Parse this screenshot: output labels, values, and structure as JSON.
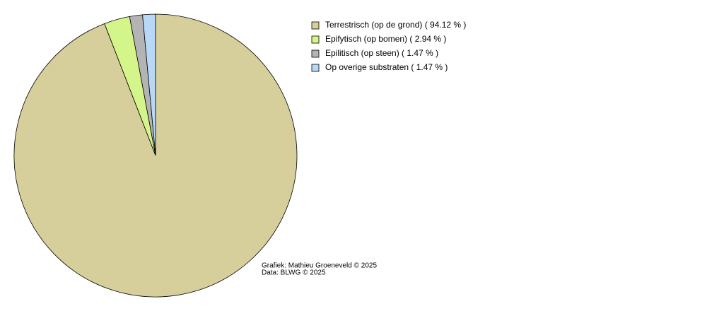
{
  "chart_data": {
    "type": "pie",
    "categories": [
      "Terrestrisch (op de grond) ( 94.12 % )",
      "Epifytisch (op bomen) ( 2.94 % )",
      "Epilitisch (op steen) ( 1.47 % )",
      "Op overige substraten ( 1.47 % )"
    ],
    "values": [
      94.12,
      2.94,
      1.47,
      1.47
    ],
    "colors": [
      "#d6cf9c",
      "#d4f58a",
      "#b4b4b4",
      "#b9d8f8"
    ],
    "legend": "top-right",
    "credits": [
      "Grafiek: Mathieu Groeneveld © 2025",
      "Data: BLWG © 2025"
    ]
  }
}
